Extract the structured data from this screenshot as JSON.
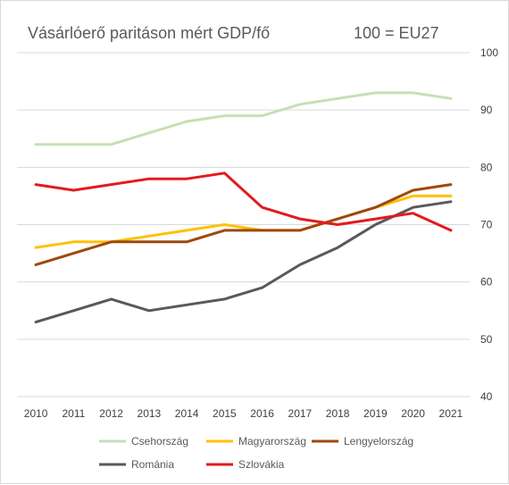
{
  "chart_data": {
    "type": "line",
    "title": "Vásárlóerő paritáson mért GDP/fő",
    "subtitle": "100 = EU27",
    "x": [
      "2010",
      "2011",
      "2012",
      "2013",
      "2014",
      "2015",
      "2016",
      "2017",
      "2018",
      "2019",
      "2020",
      "2021"
    ],
    "ylim": [
      40,
      100
    ],
    "yticks": [
      "40",
      "50",
      "60",
      "70",
      "80",
      "90",
      "100"
    ],
    "y_axis_side": "right",
    "grid": true,
    "legend_position": "bottom",
    "series": [
      {
        "name": "Csehország",
        "color": "#c5e0b4",
        "values": [
          84,
          84,
          84,
          86,
          88,
          89,
          89,
          91,
          92,
          93,
          93,
          92
        ]
      },
      {
        "name": "Magyarország",
        "color": "#ffc000",
        "values": [
          66,
          67,
          67,
          68,
          69,
          70,
          69,
          69,
          71,
          73,
          75,
          75
        ]
      },
      {
        "name": "Lengyelország",
        "color": "#9e480e",
        "values": [
          63,
          65,
          67,
          67,
          67,
          69,
          69,
          69,
          71,
          73,
          76,
          77
        ]
      },
      {
        "name": "Románia",
        "color": "#595959",
        "values": [
          53,
          55,
          57,
          55,
          56,
          57,
          59,
          63,
          66,
          70,
          73,
          74
        ]
      },
      {
        "name": "Szlovákia",
        "color": "#e31a1c",
        "values": [
          77,
          76,
          77,
          78,
          78,
          79,
          73,
          71,
          70,
          71,
          72,
          69
        ]
      }
    ]
  }
}
